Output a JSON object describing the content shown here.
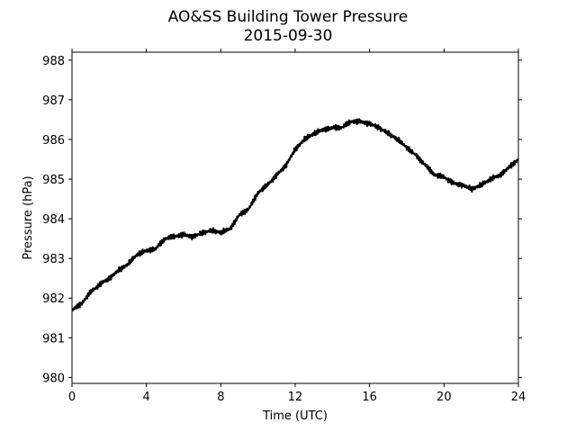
{
  "chart_data": {
    "type": "line",
    "title": "AO&SS Building Tower Pressure",
    "subtitle": "2015-09-30",
    "xlabel": "Time (UTC)",
    "ylabel": "Pressure (hPa)",
    "xlim": [
      0,
      24
    ],
    "ylim": [
      979.85,
      988.2
    ],
    "xticks": [
      0,
      4,
      8,
      12,
      16,
      20,
      24
    ],
    "yticks": [
      980,
      981,
      982,
      983,
      984,
      985,
      986,
      987,
      988
    ],
    "grid": false,
    "legend": "none",
    "line_color": "#000000",
    "series": [
      {
        "x": [
          0,
          0.5,
          1,
          1.5,
          2,
          2.5,
          3,
          3.5,
          4,
          4.5,
          5,
          5.5,
          6,
          6.5,
          7,
          7.5,
          8,
          8.5,
          9,
          9.5,
          10,
          10.5,
          11,
          11.5,
          12,
          12.5,
          13,
          13.5,
          14,
          14.5,
          15,
          15.5,
          16,
          16.5,
          17,
          17.5,
          18,
          18.5,
          19,
          19.5,
          20,
          20.5,
          21,
          21.5,
          22,
          22.5,
          23,
          23.5,
          24
        ],
        "y": [
          981.7,
          981.85,
          982.15,
          982.35,
          982.5,
          982.7,
          982.85,
          983.1,
          983.2,
          983.25,
          983.5,
          983.55,
          983.6,
          983.55,
          983.65,
          983.7,
          983.65,
          983.75,
          984.1,
          984.25,
          984.65,
          984.85,
          985.1,
          985.35,
          985.75,
          986.0,
          986.15,
          986.25,
          986.3,
          986.3,
          986.45,
          986.45,
          986.4,
          986.3,
          986.15,
          986.0,
          985.8,
          985.6,
          985.35,
          985.1,
          985.05,
          984.9,
          984.85,
          984.75,
          984.85,
          985.0,
          985.1,
          985.3,
          985.5
        ]
      }
    ]
  }
}
